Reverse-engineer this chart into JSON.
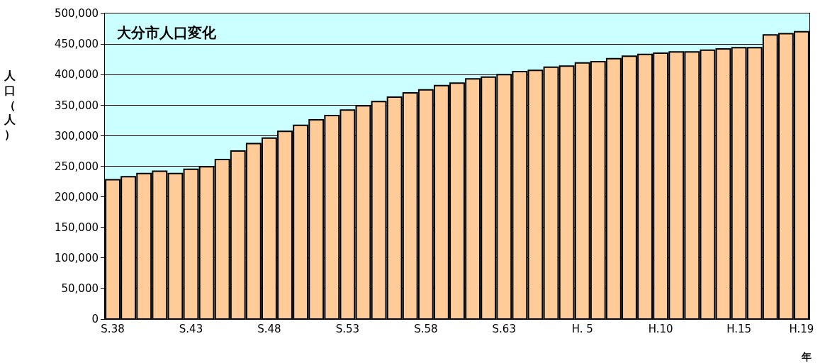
{
  "chart_data": {
    "type": "bar",
    "title": "大分市人口変化",
    "ylabel": "人口（人）",
    "xlabel": "年",
    "categories": [
      "S.38",
      null,
      null,
      null,
      null,
      "S.43",
      null,
      null,
      null,
      null,
      "S.48",
      null,
      null,
      null,
      null,
      "S.53",
      null,
      null,
      null,
      null,
      "S.58",
      null,
      null,
      null,
      null,
      "S.63",
      null,
      null,
      null,
      null,
      "H. 5",
      null,
      null,
      null,
      null,
      "H.10",
      null,
      null,
      null,
      null,
      "H.15",
      null,
      null,
      null,
      "H.19"
    ],
    "values": [
      228000,
      233000,
      238000,
      242000,
      238000,
      245000,
      249000,
      261000,
      275000,
      287000,
      296000,
      307000,
      317000,
      326000,
      333000,
      342000,
      349000,
      356000,
      363000,
      370000,
      375000,
      382000,
      386000,
      393000,
      396000,
      400000,
      405000,
      407000,
      412000,
      414000,
      419000,
      421000,
      426000,
      430000,
      433000,
      435000,
      437000,
      437000,
      440000,
      442000,
      444000,
      444000,
      465000,
      467000,
      470000
    ],
    "color": "#ffcc99",
    "ylim": [
      0,
      500000
    ],
    "yticks": [
      0,
      {
        "value": 50000,
        "label": "50,000"
      },
      {
        "value": 100000,
        "label": "100,000"
      },
      {
        "value": 150000,
        "label": "150,000"
      },
      {
        "value": 200000,
        "label": "200,000"
      },
      {
        "value": 250000,
        "label": "250,000"
      },
      {
        "value": 300000,
        "label": "300,000"
      },
      {
        "value": 350000,
        "label": "350,000"
      },
      {
        "value": 400000,
        "label": "400,000"
      },
      {
        "value": 450000,
        "label": "450,000"
      },
      {
        "value": 500000,
        "label": "500,000"
      }
    ],
    "grid": "y"
  }
}
